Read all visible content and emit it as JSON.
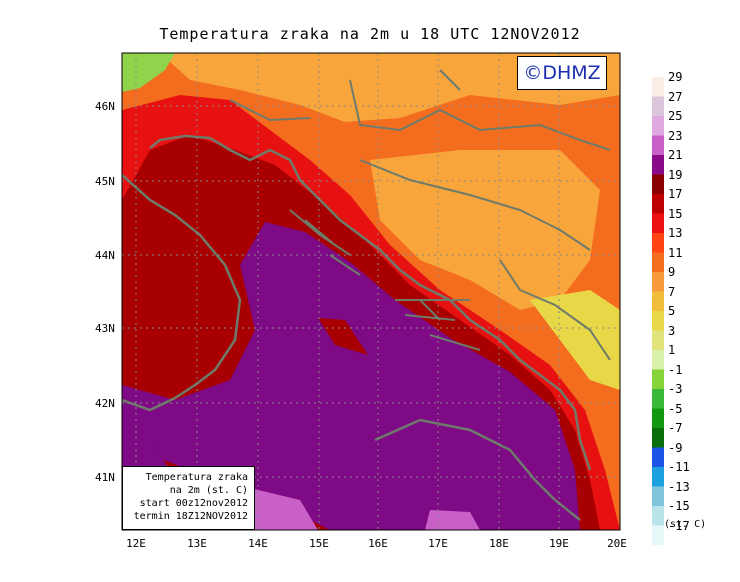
{
  "title": "Temperatura zraka na 2m u 18 UTC 12NOV2012",
  "brand": "©DHMZ",
  "lat_labels": [
    "46N",
    "45N",
    "44N",
    "43N",
    "42N",
    "41N"
  ],
  "lon_labels": [
    "12E",
    "13E",
    "14E",
    "15E",
    "16E",
    "17E",
    "18E",
    "19E",
    "20E"
  ],
  "info": {
    "line1": "Temperatura zraka",
    "line2": "na 2m (st. C)",
    "line3": "start 00z12nov2012",
    "line4": "termin 18Z12NOV2012"
  },
  "colorbar": {
    "unit": "(st. C)",
    "labels": [
      "29",
      "27",
      "25",
      "23",
      "21",
      "19",
      "17",
      "15",
      "13",
      "11",
      "9",
      "7",
      "5",
      "3",
      "1",
      "-1",
      "-3",
      "-5",
      "-7",
      "-9",
      "-11",
      "-13",
      "-15",
      "-17"
    ],
    "colors": [
      "#fbeee6",
      "#dcc6dc",
      "#e0a8e0",
      "#c860c8",
      "#8a0a8a",
      "#8a0000",
      "#bd0000",
      "#ee1111",
      "#ff4411",
      "#f46d1e",
      "#f89a3c",
      "#f0be3a",
      "#e8d848",
      "#e0e47a",
      "#d9f0a8",
      "#86d43a",
      "#3ab83a",
      "#119a11",
      "#0a6e0a",
      "#1c54e6",
      "#1ca0e0",
      "#7fc6dc",
      "#b8e4ea",
      "#e6f8f8"
    ]
  },
  "colors": {
    "sea": "#7e0a86",
    "coast": "#6e7b6a",
    "warm_red": "#e81111",
    "dark_red": "#a80000",
    "orange": "#f46d1e",
    "light_orange": "#f8a53c",
    "green": "#8fd44a",
    "brand_text": "#1d2fb0"
  }
}
